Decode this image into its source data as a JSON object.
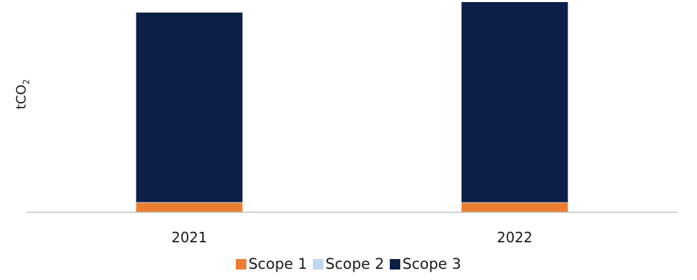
{
  "chart_data": {
    "type": "bar",
    "stacked": true,
    "categories": [
      "2021",
      "2022"
    ],
    "ylabel_main": "tCO",
    "ylabel_sub": "2",
    "ylim": [
      0,
      100
    ],
    "series": [
      {
        "name": "Scope 1",
        "color": "#ED7D31",
        "values": [
          4.5,
          4.5
        ]
      },
      {
        "name": "Scope 2",
        "color": "#BDD7EE",
        "values": [
          0.3,
          0.3
        ]
      },
      {
        "name": "Scope 3",
        "color": "#0B1F47",
        "values": [
          90.2,
          95.2
        ]
      }
    ],
    "grid": false,
    "legend_position": "bottom"
  }
}
